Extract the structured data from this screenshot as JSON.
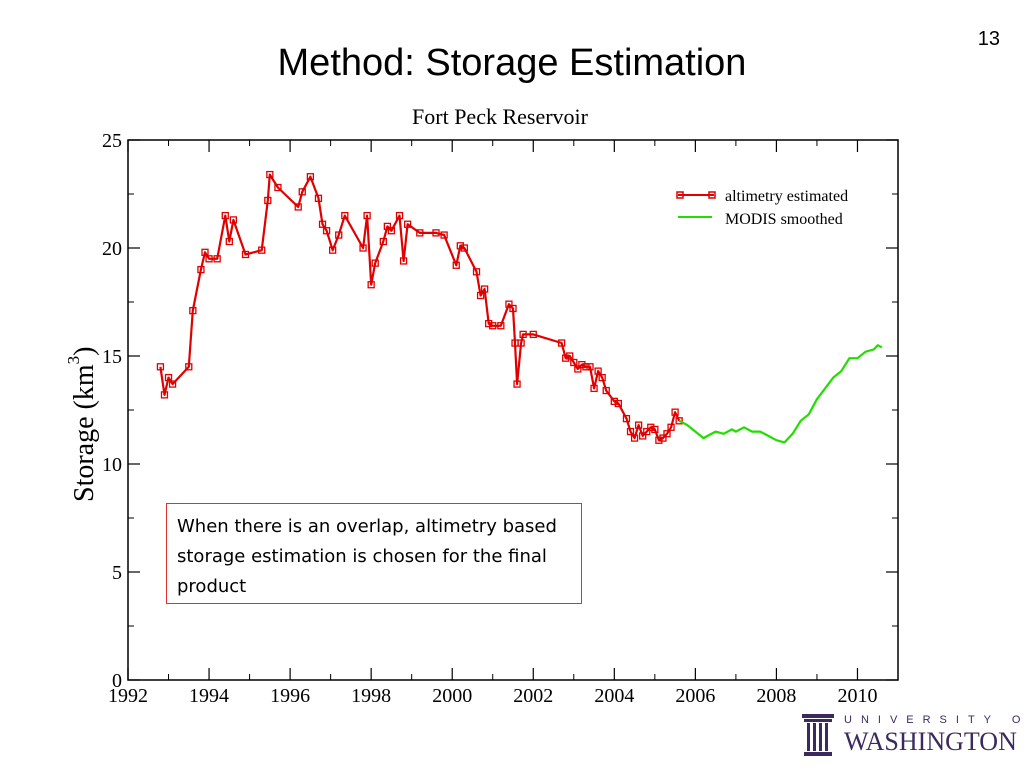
{
  "slide": {
    "title": "Method: Storage Estimation",
    "number": "13"
  },
  "callout": {
    "text": "When there is an overlap, altimetry based storage estimation is chosen for the final product"
  },
  "logo": {
    "line1": "UNIVERSITY OF",
    "line2": "WASHINGTON",
    "color": "#3b2a5e"
  },
  "chart_data": {
    "type": "line",
    "title": "Fort Peck Reservoir",
    "xlabel": "",
    "ylabel": "Storage (km",
    "ylabel_sup": "3",
    "ylabel_end": ")",
    "xlim": [
      1992,
      2011
    ],
    "ylim": [
      0,
      25
    ],
    "xticks": [
      1992,
      1994,
      1996,
      1998,
      2000,
      2002,
      2004,
      2006,
      2008,
      2010
    ],
    "yticks": [
      0,
      5,
      10,
      15,
      20,
      25
    ],
    "legend_position": "top-right",
    "grid": false,
    "series": [
      {
        "name": "altimetry estimated",
        "color": "#e00000",
        "marker": "square",
        "x": [
          1992.8,
          1992.9,
          1993.0,
          1993.1,
          1993.5,
          1993.6,
          1993.8,
          1993.9,
          1994.0,
          1994.2,
          1994.4,
          1994.5,
          1994.6,
          1994.9,
          1995.3,
          1995.45,
          1995.5,
          1995.7,
          1996.2,
          1996.3,
          1996.5,
          1996.7,
          1996.8,
          1996.9,
          1997.05,
          1997.2,
          1997.35,
          1997.8,
          1997.9,
          1998.0,
          1998.1,
          1998.3,
          1998.4,
          1998.5,
          1998.7,
          1998.8,
          1998.9,
          1999.2,
          1999.6,
          1999.8,
          2000.1,
          2000.2,
          2000.3,
          2000.6,
          2000.7,
          2000.8,
          2000.9,
          2001.0,
          2001.2,
          2001.4,
          2001.5,
          2001.55,
          2001.6,
          2001.7,
          2001.75,
          2002.0,
          2002.7,
          2002.8,
          2002.9,
          2003.0,
          2003.1,
          2003.2,
          2003.3,
          2003.4,
          2003.5,
          2003.6,
          2003.7,
          2003.8,
          2004.0,
          2004.1,
          2004.3,
          2004.4,
          2004.5,
          2004.6,
          2004.7,
          2004.8,
          2004.9,
          2005.0,
          2005.1,
          2005.2,
          2005.3,
          2005.4,
          2005.5,
          2005.6
        ],
        "values": [
          14.5,
          13.2,
          14.0,
          13.7,
          14.5,
          17.1,
          19.0,
          19.8,
          19.5,
          19.5,
          21.5,
          20.3,
          21.3,
          19.7,
          19.9,
          22.2,
          23.4,
          22.8,
          21.9,
          22.6,
          23.3,
          22.3,
          21.1,
          20.8,
          19.9,
          20.6,
          21.5,
          20.0,
          21.5,
          18.3,
          19.3,
          20.3,
          21.0,
          20.8,
          21.5,
          19.4,
          21.1,
          20.7,
          20.7,
          20.6,
          19.2,
          20.1,
          20.0,
          18.9,
          17.8,
          18.1,
          16.5,
          16.4,
          16.4,
          17.4,
          17.2,
          15.6,
          13.7,
          15.6,
          16.0,
          16.0,
          15.6,
          14.9,
          15.0,
          14.7,
          14.4,
          14.6,
          14.5,
          14.5,
          13.5,
          14.3,
          14.0,
          13.4,
          12.9,
          12.8,
          12.1,
          11.5,
          11.2,
          11.8,
          11.3,
          11.5,
          11.7,
          11.6,
          11.1,
          11.2,
          11.4,
          11.7,
          12.4,
          12.0
        ]
      },
      {
        "name": "MODIS smoothed",
        "color": "#22dd00",
        "marker": "none",
        "x": [
          2005.6,
          2005.8,
          2006.0,
          2006.2,
          2006.3,
          2006.5,
          2006.7,
          2006.9,
          2007.0,
          2007.2,
          2007.4,
          2007.6,
          2007.8,
          2008.0,
          2008.2,
          2008.4,
          2008.6,
          2008.8,
          2009.0,
          2009.2,
          2009.4,
          2009.6,
          2009.8,
          2010.0,
          2010.2,
          2010.4,
          2010.5,
          2010.6
        ],
        "values": [
          12.0,
          11.8,
          11.5,
          11.2,
          11.3,
          11.5,
          11.4,
          11.6,
          11.5,
          11.7,
          11.5,
          11.5,
          11.3,
          11.1,
          11.0,
          11.4,
          12.0,
          12.3,
          13.0,
          13.5,
          14.0,
          14.3,
          14.9,
          14.9,
          15.2,
          15.3,
          15.5,
          15.4
        ]
      }
    ]
  }
}
